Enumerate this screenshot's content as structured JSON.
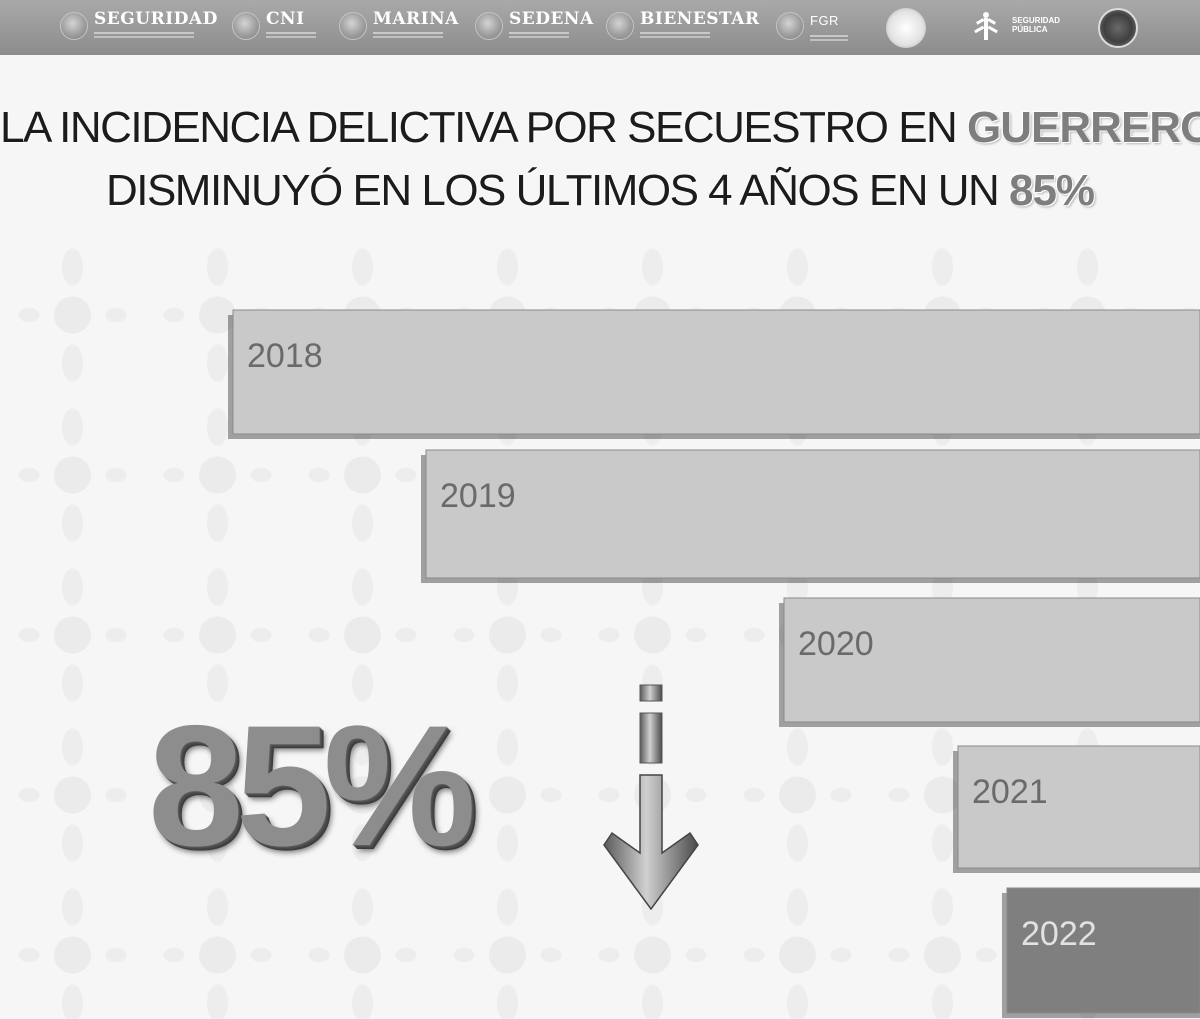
{
  "header": {
    "logos": [
      {
        "name": "seguridad",
        "label": "SEGURIDAD"
      },
      {
        "name": "cni",
        "label": "CNI"
      },
      {
        "name": "marina",
        "label": "MARINA"
      },
      {
        "name": "sedena",
        "label": "SEDENA"
      },
      {
        "name": "bienestar",
        "label": "BIENESTAR"
      },
      {
        "name": "fgr",
        "label": "FGR"
      }
    ],
    "ssp_label": "SEGURIDAD PÚBLICA"
  },
  "headline": {
    "line1_prefix": "LA INCIDENCIA DELICTIVA POR SECUESTRO EN ",
    "line1_highlight": "GUERRERO",
    "line2_prefix": "DISMINUYÓ EN LOS ÚLTIMOS 4 AÑOS EN UN ",
    "line2_highlight": "85%"
  },
  "big_stat": "85%",
  "colors": {
    "bar_light": "#c9c9c9",
    "bar_highlight": "#7f7f7f",
    "bar_label": "#6a6a6a",
    "bar_label_highlight": "#e2e2e2"
  },
  "chart_data": {
    "type": "bar",
    "orientation": "horizontal",
    "categories": [
      "2018",
      "2019",
      "2020",
      "2021",
      "2022"
    ],
    "values": [
      100,
      80,
      43,
      25,
      20
    ],
    "highlight_category": "2022",
    "axes_shown": false,
    "grid": false
  }
}
